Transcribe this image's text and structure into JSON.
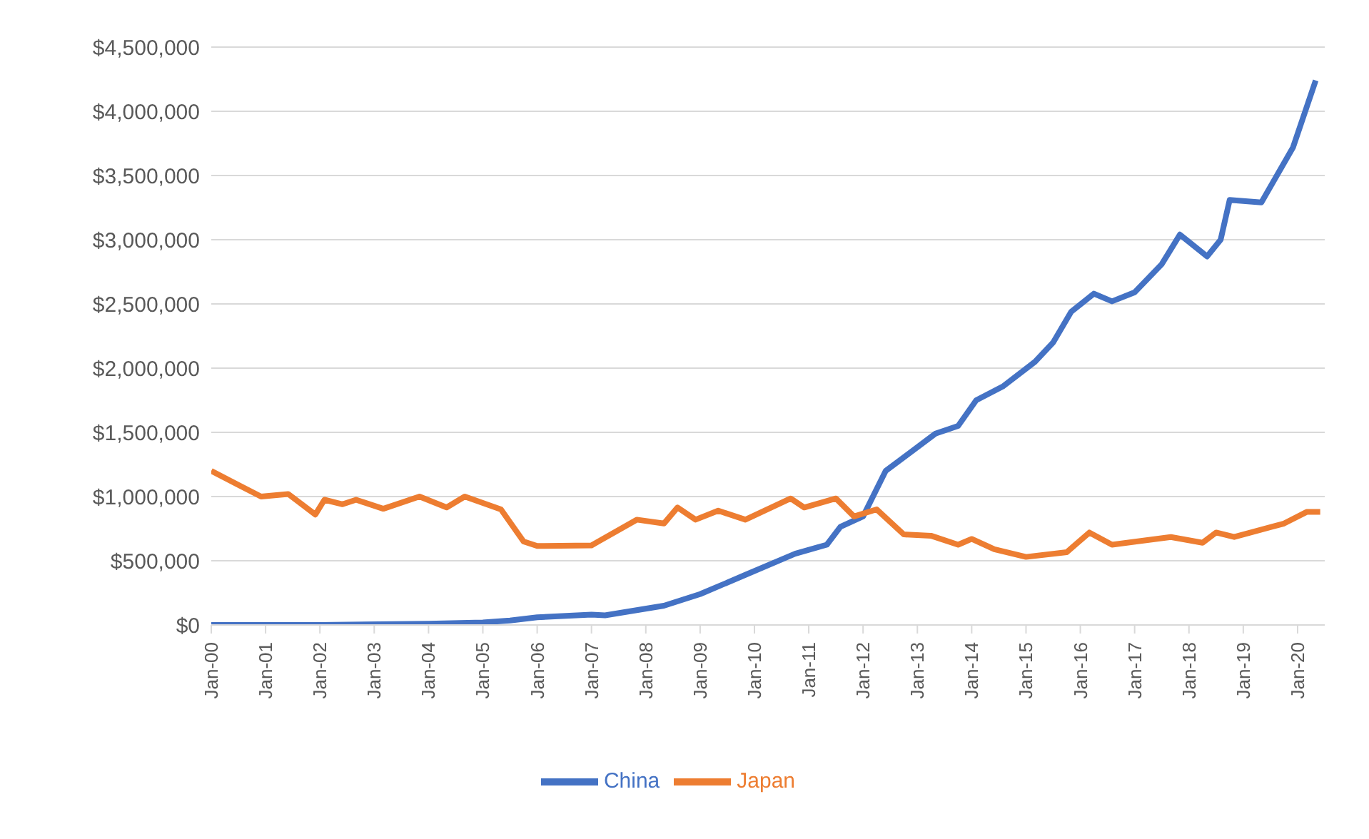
{
  "chart_data": {
    "type": "line",
    "xlim": [
      "2000-01",
      "2020-07"
    ],
    "xticks": [
      {
        "value": "2000-01",
        "label": "Jan-00"
      },
      {
        "value": "2001-01",
        "label": "Jan-01"
      },
      {
        "value": "2002-01",
        "label": "Jan-02"
      },
      {
        "value": "2003-01",
        "label": "Jan-03"
      },
      {
        "value": "2004-01",
        "label": "Jan-04"
      },
      {
        "value": "2005-01",
        "label": "Jan-05"
      },
      {
        "value": "2006-01",
        "label": "Jan-06"
      },
      {
        "value": "2007-01",
        "label": "Jan-07"
      },
      {
        "value": "2008-01",
        "label": "Jan-08"
      },
      {
        "value": "2009-01",
        "label": "Jan-09"
      },
      {
        "value": "2010-01",
        "label": "Jan-10"
      },
      {
        "value": "2011-01",
        "label": "Jan-11"
      },
      {
        "value": "2012-01",
        "label": "Jan-12"
      },
      {
        "value": "2013-01",
        "label": "Jan-13"
      },
      {
        "value": "2014-01",
        "label": "Jan-14"
      },
      {
        "value": "2015-01",
        "label": "Jan-15"
      },
      {
        "value": "2016-01",
        "label": "Jan-16"
      },
      {
        "value": "2017-01",
        "label": "Jan-17"
      },
      {
        "value": "2018-01",
        "label": "Jan-18"
      },
      {
        "value": "2019-01",
        "label": "Jan-19"
      },
      {
        "value": "2020-01",
        "label": "Jan-20"
      }
    ],
    "ylim": [
      0,
      4500000
    ],
    "yticks": [
      {
        "value": 0,
        "label": "$0"
      },
      {
        "value": 500000,
        "label": "$500,000"
      },
      {
        "value": 1000000,
        "label": "$1,000,000"
      },
      {
        "value": 1500000,
        "label": "$1,500,000"
      },
      {
        "value": 2000000,
        "label": "$2,000,000"
      },
      {
        "value": 2500000,
        "label": "$2,500,000"
      },
      {
        "value": 3000000,
        "label": "$3,000,000"
      },
      {
        "value": 3500000,
        "label": "$3,500,000"
      },
      {
        "value": 4000000,
        "label": "$4,000,000"
      },
      {
        "value": 4500000,
        "label": "$4,500,000"
      }
    ],
    "grid": "y",
    "legend": "bottom",
    "marker": "none",
    "line_style": "solid",
    "series": [
      {
        "name": "China",
        "color": "#4472c4",
        "x": [
          "2000-01",
          "2002-01",
          "2004-01",
          "2005-01",
          "2005-07",
          "2006-01",
          "2007-01",
          "2007-04",
          "2008-05",
          "2009-01",
          "2009-11",
          "2010-10",
          "2011-05",
          "2011-08",
          "2012-01",
          "2012-06",
          "2013-05",
          "2013-10",
          "2014-02",
          "2014-08",
          "2015-03",
          "2015-07",
          "2015-11",
          "2016-04",
          "2016-08",
          "2017-01",
          "2017-07",
          "2017-11",
          "2018-05",
          "2018-08",
          "2018-10",
          "2019-05",
          "2019-12",
          "2020-05"
        ],
        "values": [
          0,
          0,
          10000,
          20000,
          35000,
          60000,
          80000,
          75000,
          150000,
          240000,
          390000,
          555000,
          625000,
          765000,
          845000,
          1200000,
          1490000,
          1550000,
          1750000,
          1860000,
          2050000,
          2200000,
          2440000,
          2580000,
          2520000,
          2590000,
          2810000,
          3040000,
          2870000,
          3000000,
          3310000,
          3290000,
          3720000,
          4240000
        ]
      },
      {
        "name": "Japan",
        "color": "#ed7d31",
        "x": [
          "2000-01",
          "2000-07",
          "2000-12",
          "2001-06",
          "2001-12",
          "2002-02",
          "2002-06",
          "2002-09",
          "2003-03",
          "2003-11",
          "2004-05",
          "2004-09",
          "2005-05",
          "2005-10",
          "2006-01",
          "2007-01",
          "2007-11",
          "2008-05",
          "2008-08",
          "2008-12",
          "2009-05",
          "2009-11",
          "2010-09",
          "2010-12",
          "2011-07",
          "2011-11",
          "2012-04",
          "2012-10",
          "2013-04",
          "2013-10",
          "2014-01",
          "2014-06",
          "2015-01",
          "2015-10",
          "2016-03",
          "2016-08",
          "2017-09",
          "2018-04",
          "2018-07",
          "2018-11",
          "2019-10",
          "2020-03",
          "2020-06"
        ],
        "values": [
          1200000,
          1090000,
          1000000,
          1020000,
          860000,
          975000,
          940000,
          975000,
          905000,
          1000000,
          915000,
          1000000,
          900000,
          650000,
          615000,
          620000,
          820000,
          790000,
          915000,
          820000,
          890000,
          820000,
          985000,
          915000,
          985000,
          845000,
          900000,
          705000,
          695000,
          625000,
          670000,
          590000,
          530000,
          567000,
          720000,
          625000,
          685000,
          640000,
          720000,
          685000,
          790000,
          880000,
          880000
        ]
      }
    ]
  }
}
